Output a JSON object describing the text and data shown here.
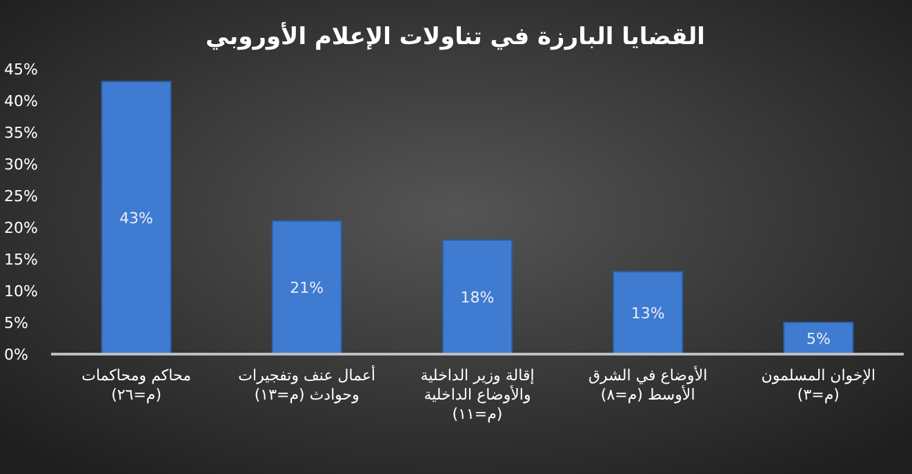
{
  "chart_data": {
    "type": "bar",
    "title": "القضايا البارزة في تناولات الإعلام الأوروبي",
    "categories": [
      "محاكم ومحاكمات (م=٢٦)",
      "أعمال عنف وتفجيرات وحوادث (م=١٣)",
      "إقالة وزير الداخلية والأوضاع الداخلية (م=١١)",
      "الأوضاع في الشرق الأوسط (م=٨)",
      "الإخوان المسلمون (م=٣)"
    ],
    "values": [
      43,
      21,
      18,
      13,
      5
    ],
    "color": "#3f7bd0",
    "ylim": [
      0,
      45
    ],
    "yticks": [
      {
        "value": 0,
        "label": "0%"
      },
      {
        "value": 5,
        "label": "5%"
      },
      {
        "value": 10,
        "label": "10%"
      },
      {
        "value": 15,
        "label": "15%"
      },
      {
        "value": 20,
        "label": "20%"
      },
      {
        "value": 25,
        "label": "25%"
      },
      {
        "value": 30,
        "label": "30%"
      },
      {
        "value": 35,
        "label": "35%"
      },
      {
        "value": 40,
        "label": "40%"
      },
      {
        "value": 45,
        "label": "45%"
      }
    ],
    "data_labels": true,
    "value_labels": [
      "43%",
      "21%",
      "18%",
      "13%",
      "5%"
    ]
  }
}
